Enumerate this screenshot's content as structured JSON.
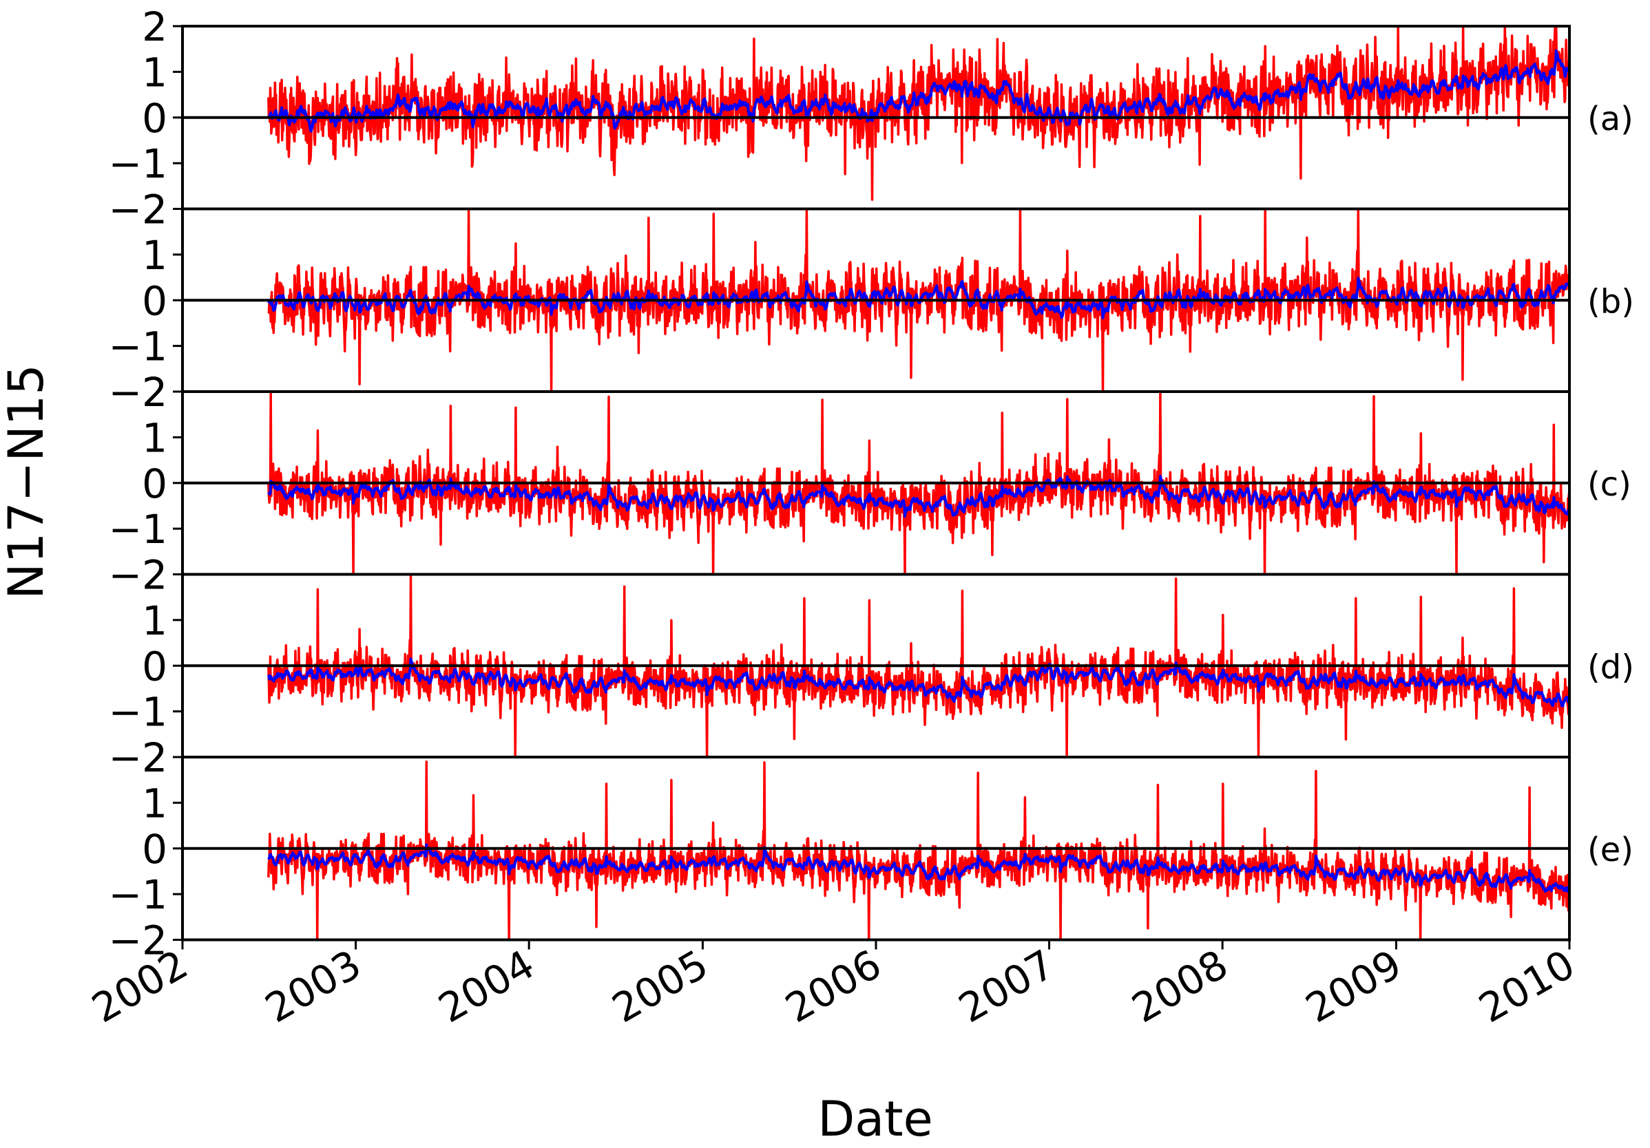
{
  "chart_data": {
    "type": "line",
    "xlabel": "Date",
    "ylabel": "N17−N15",
    "x_range": [
      "2002-01-01",
      "2010-01-01"
    ],
    "x_ticks": [
      "2002",
      "2003",
      "2004",
      "2005",
      "2006",
      "2007",
      "2008",
      "2009",
      "2010"
    ],
    "series_colors": {
      "daily": "#ff0000",
      "smoothed": "#0000ff",
      "zero_line": "#000000"
    },
    "panels": [
      {
        "label": "(a)",
        "ylim": [
          -2,
          2
        ],
        "y_ticks": [
          "2",
          "1",
          "0",
          "−1",
          "−2"
        ],
        "data_start": "2002-07-01",
        "data_end": "2009-12-31",
        "smoothed_trend": [
          [
            "2002-07-01",
            0.0
          ],
          [
            "2003-01-01",
            0.1
          ],
          [
            "2003-07-01",
            0.2
          ],
          [
            "2004-01-01",
            0.2
          ],
          [
            "2004-07-01",
            0.2
          ],
          [
            "2005-01-01",
            0.2
          ],
          [
            "2005-07-01",
            0.3
          ],
          [
            "2006-01-01",
            0.2
          ],
          [
            "2006-07-01",
            0.7
          ],
          [
            "2006-10-01",
            0.6
          ],
          [
            "2007-01-01",
            0.0
          ],
          [
            "2007-07-01",
            0.3
          ],
          [
            "2008-01-01",
            0.4
          ],
          [
            "2008-04-01",
            0.4
          ],
          [
            "2008-07-01",
            0.8
          ],
          [
            "2009-01-01",
            0.6
          ],
          [
            "2009-07-01",
            0.8
          ],
          [
            "2009-12-31",
            1.1
          ]
        ],
        "daily_spread": 0.8
      },
      {
        "label": "(b)",
        "ylim": [
          -2,
          2
        ],
        "y_ticks": [
          "2",
          "1",
          "0",
          "−1",
          "−2"
        ],
        "data_start": "2002-07-01",
        "data_end": "2009-12-31",
        "smoothed_trend": [
          [
            "2002-07-01",
            0.0
          ],
          [
            "2003-07-01",
            0.0
          ],
          [
            "2004-07-01",
            0.0
          ],
          [
            "2005-07-01",
            0.0
          ],
          [
            "2006-07-01",
            0.2
          ],
          [
            "2007-01-01",
            -0.2
          ],
          [
            "2007-07-01",
            0.0
          ],
          [
            "2008-07-01",
            0.1
          ],
          [
            "2009-07-01",
            0.1
          ],
          [
            "2009-12-31",
            0.2
          ]
        ],
        "daily_spread": 0.7
      },
      {
        "label": "(c)",
        "ylim": [
          -2,
          2
        ],
        "y_ticks": [
          "2",
          "1",
          "0",
          "−1",
          "−2"
        ],
        "data_start": "2002-07-01",
        "data_end": "2009-12-31",
        "smoothed_trend": [
          [
            "2002-07-01",
            -0.2
          ],
          [
            "2003-07-01",
            -0.1
          ],
          [
            "2004-07-01",
            -0.4
          ],
          [
            "2005-07-01",
            -0.3
          ],
          [
            "2006-07-01",
            -0.5
          ],
          [
            "2007-01-01",
            0.0
          ],
          [
            "2007-07-01",
            -0.2
          ],
          [
            "2008-07-01",
            -0.3
          ],
          [
            "2009-07-01",
            -0.2
          ],
          [
            "2009-12-31",
            -0.6
          ]
        ],
        "daily_spread": 0.6
      },
      {
        "label": "(d)",
        "ylim": [
          -2,
          2
        ],
        "y_ticks": [
          "2",
          "1",
          "0",
          "−1",
          "−2"
        ],
        "data_start": "2002-07-01",
        "data_end": "2009-12-31",
        "smoothed_trend": [
          [
            "2002-07-01",
            -0.2
          ],
          [
            "2003-07-01",
            -0.2
          ],
          [
            "2004-07-01",
            -0.4
          ],
          [
            "2005-07-01",
            -0.3
          ],
          [
            "2006-07-01",
            -0.6
          ],
          [
            "2007-01-01",
            -0.1
          ],
          [
            "2007-07-01",
            -0.2
          ],
          [
            "2008-07-01",
            -0.3
          ],
          [
            "2009-07-01",
            -0.4
          ],
          [
            "2009-12-31",
            -0.8
          ]
        ],
        "daily_spread": 0.55
      },
      {
        "label": "(e)",
        "ylim": [
          -2,
          2
        ],
        "y_ticks": [
          "2",
          "1",
          "0",
          "−1",
          "−2"
        ],
        "data_start": "2002-07-01",
        "data_end": "2009-12-31",
        "smoothed_trend": [
          [
            "2002-07-01",
            -0.2
          ],
          [
            "2003-07-01",
            -0.2
          ],
          [
            "2004-07-01",
            -0.4
          ],
          [
            "2005-07-01",
            -0.3
          ],
          [
            "2006-07-01",
            -0.5
          ],
          [
            "2007-01-01",
            -0.2
          ],
          [
            "2007-07-01",
            -0.4
          ],
          [
            "2008-07-01",
            -0.5
          ],
          [
            "2009-07-01",
            -0.6
          ],
          [
            "2009-12-31",
            -0.9
          ]
        ],
        "daily_spread": 0.5
      }
    ]
  }
}
